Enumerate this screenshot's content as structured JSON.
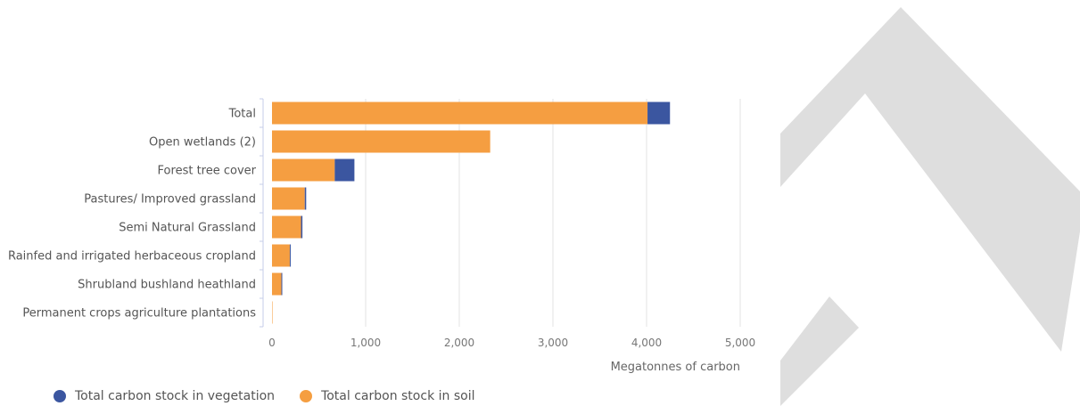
{
  "colors": {
    "vegetation": "#3b56a0",
    "soil": "#f59e41",
    "grid": "#e3e3e3",
    "axis": "#c5cce8",
    "decoration": "#dedede"
  },
  "chart_data": {
    "type": "bar",
    "orientation": "horizontal",
    "stacked": true,
    "categories": [
      "Total",
      "Open wetlands (2)",
      "Forest tree cover",
      "Pastures/ Improved grassland",
      "Semi Natural Grassland",
      "Rainfed and irrigated herbaceous cropland",
      "Shrubland bushland heathland",
      "Permanent crops agriculture plantations"
    ],
    "series": [
      {
        "name": "Total carbon stock in soil",
        "color": "#f59e41",
        "values": [
          4010,
          2330,
          670,
          350,
          310,
          190,
          100,
          5
        ]
      },
      {
        "name": "Total carbon stock in vegetation",
        "color": "#3b56a0",
        "values": [
          240,
          0,
          210,
          15,
          15,
          5,
          5,
          0
        ]
      }
    ],
    "xlim": [
      0,
      5000
    ],
    "xticks": [
      0,
      1000,
      2000,
      3000,
      4000,
      5000
    ],
    "xtick_labels": [
      "0",
      "1,000",
      "2,000",
      "3,000",
      "4,000",
      "5,000"
    ],
    "xlabel": "Megatonnes of carbon",
    "ylabel": "",
    "grid": true,
    "legend": {
      "position": "bottom-left",
      "items": [
        {
          "name": "Total carbon stock in vegetation",
          "color": "#3b56a0"
        },
        {
          "name": "Total carbon stock in soil",
          "color": "#f59e41"
        }
      ]
    }
  }
}
